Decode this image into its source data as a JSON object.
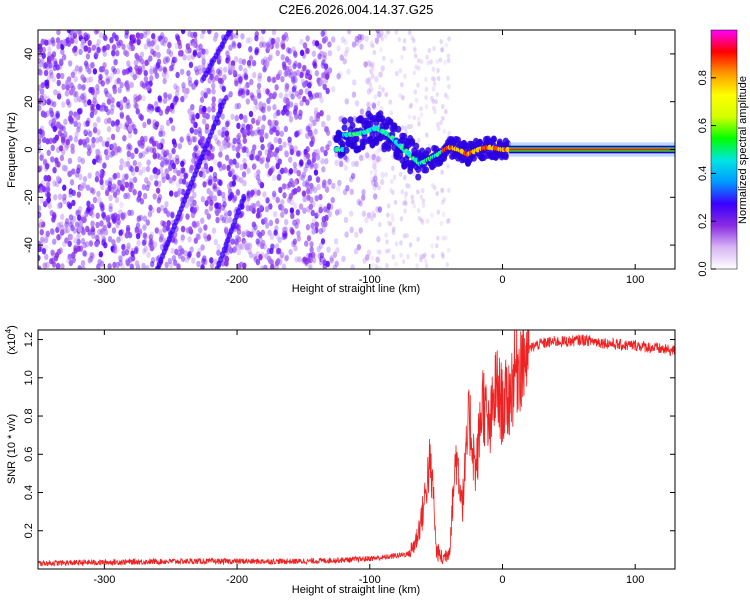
{
  "title": "C2E6.2026.004.14.37.G25",
  "chart_data": [
    {
      "type": "heatmap",
      "xlabel": "Height of straight line (km)",
      "ylabel": "Frequency (Hz)",
      "xlim": [
        -350,
        130
      ],
      "ylim": [
        -50,
        50
      ],
      "xticks": [
        -300,
        -200,
        -100,
        0,
        100
      ],
      "yticks": [
        -40,
        -20,
        0,
        20,
        40
      ],
      "colorbar": {
        "label": "Normalized spectral amplitude",
        "range": [
          0.0,
          1.0
        ],
        "ticks": [
          0.0,
          0.2,
          0.4,
          0.6,
          0.8
        ],
        "colors": [
          "#ffffff",
          "#d7b5f5",
          "#8a2be2",
          "#3a00ff",
          "#0099ff",
          "#00e5e5",
          "#00ff00",
          "#d4ff00",
          "#ffff00",
          "#ff9900",
          "#ff0000",
          "#ff00ff"
        ]
      },
      "signal_track": {
        "description_values": "peak frequency vs height",
        "x": [
          -120,
          -105,
          -95,
          -85,
          -78,
          -70,
          -62,
          -55,
          -48,
          -40,
          -33,
          -26,
          -18,
          -10,
          0,
          50,
          130
        ],
        "y": [
          6,
          7,
          9,
          6,
          2,
          -2,
          -6,
          -4,
          -2,
          1,
          0,
          -2,
          0,
          1,
          0,
          0,
          0
        ]
      }
    },
    {
      "type": "line",
      "xlabel": "Height of straight line (km)",
      "ylabel": "SNR (10 * v/v)",
      "scale_label": "(x10",
      "scale_exp": "4",
      "scale_close": ")",
      "xlim": [
        -350,
        130
      ],
      "ylim": [
        0,
        1.25
      ],
      "xticks": [
        -300,
        -200,
        -100,
        0,
        100
      ],
      "yticks": [
        0.2,
        0.4,
        0.6,
        0.8,
        1.0,
        1.2
      ],
      "ytick_labels": [
        "0.2",
        "0.4",
        "0.6",
        "0.8",
        "1.0",
        "1.2"
      ],
      "series": [
        {
          "name": "SNR",
          "color": "#ee2222",
          "x": [
            -350,
            -300,
            -250,
            -200,
            -150,
            -110,
            -90,
            -70,
            -65,
            -60,
            -55,
            -52,
            -50,
            -45,
            -40,
            -35,
            -30,
            -25,
            -20,
            -15,
            -10,
            -5,
            0,
            5,
            10,
            15,
            20,
            25,
            30,
            40,
            50,
            60,
            70,
            80,
            90,
            100,
            110,
            120,
            130
          ],
          "values": [
            0.03,
            0.035,
            0.04,
            0.04,
            0.04,
            0.05,
            0.06,
            0.08,
            0.15,
            0.3,
            0.55,
            0.4,
            0.1,
            0.05,
            0.1,
            0.6,
            0.35,
            0.8,
            0.5,
            0.9,
            0.7,
            0.95,
            0.85,
            0.9,
            1.05,
            1.1,
            1.15,
            1.17,
            1.18,
            1.19,
            1.19,
            1.2,
            1.19,
            1.18,
            1.17,
            1.17,
            1.16,
            1.15,
            1.14
          ]
        }
      ]
    }
  ]
}
